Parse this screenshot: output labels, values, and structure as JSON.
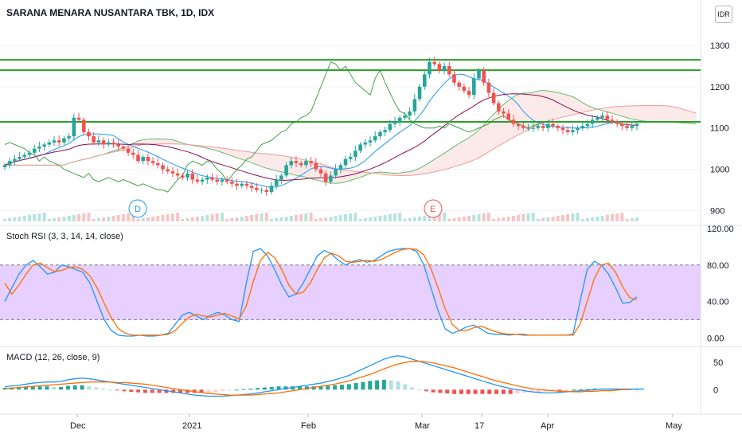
{
  "header": {
    "title": "SARANA MENARA NUSANTARA TBK, 1D, IDX",
    "currency_badge": "IDR"
  },
  "panes": {
    "stoch_label": "Stoch RSI (3, 3, 14, 14, close)",
    "macd_label": "MACD (12, 26, close, 9)"
  },
  "colors": {
    "up": "#26a69a",
    "down": "#ef5350",
    "k_line": "#2196f3",
    "d_line": "#ff6d00",
    "hline": "#2a9d2a",
    "conversion": "#2196f3",
    "base": "#880e4f",
    "lagging": "#43a047",
    "stoch_band": "#e1c4ff"
  },
  "chart_data": [
    {
      "type": "candlestick",
      "title": "SARANA MENARA NUSANTARA TBK, 1D, IDX",
      "xlabel": "",
      "ylabel": "",
      "x_ticks": [
        "Dec",
        "2021",
        "Feb",
        "Mar",
        "17",
        "Apr",
        "May"
      ],
      "y_ticks": [
        900,
        1000,
        1100,
        1200,
        1300
      ],
      "ylim": [
        870,
        1410
      ],
      "horizontal_levels": [
        1115,
        1240,
        1265
      ],
      "markers": [
        "D",
        "E"
      ],
      "close": [
        1010,
        1020,
        1025,
        1030,
        1035,
        1040,
        1050,
        1055,
        1060,
        1065,
        1070,
        1065,
        1075,
        1080,
        1125,
        1120,
        1090,
        1080,
        1065,
        1070,
        1060,
        1065,
        1060,
        1055,
        1050,
        1040,
        1035,
        1020,
        1030,
        1020,
        1015,
        1010,
        1000,
        995,
        990,
        985,
        980,
        990,
        975,
        970,
        975,
        980,
        975,
        970,
        975,
        970,
        965,
        960,
        965,
        960,
        955,
        950,
        950,
        945,
        960,
        975,
        985,
        1010,
        1020,
        1015,
        1010,
        1020,
        1015,
        1000,
        990,
        970,
        985,
        1000,
        1010,
        1025,
        1030,
        1045,
        1060,
        1065,
        1070,
        1080,
        1090,
        1095,
        1110,
        1115,
        1125,
        1130,
        1140,
        1170,
        1200,
        1230,
        1260,
        1255,
        1240,
        1250,
        1230,
        1210,
        1200,
        1190,
        1180,
        1220,
        1240,
        1210,
        1185,
        1160,
        1140,
        1135,
        1120,
        1110,
        1105,
        1100,
        1100,
        1100,
        1105,
        1100,
        1110,
        1105,
        1100,
        1095,
        1090,
        1095,
        1100,
        1105,
        1110,
        1120,
        1125,
        1130,
        1120,
        1115,
        1110,
        1105,
        1100,
        1105,
        1110
      ]
    },
    {
      "type": "line",
      "title": "Stoch RSI (3, 3, 14, 14, close)",
      "y_ticks": [
        0,
        40,
        80,
        120
      ],
      "ylim": [
        -5,
        120
      ],
      "bands": [
        20,
        80
      ],
      "series": [
        {
          "name": "",
          "values": [
            40,
            55,
            70,
            80,
            85,
            78,
            70,
            72,
            80,
            78,
            75,
            72,
            60,
            40,
            20,
            8,
            3,
            2,
            2,
            3,
            2,
            2,
            3,
            5,
            15,
            25,
            28,
            24,
            20,
            25,
            28,
            25,
            20,
            18,
            60,
            95,
            98,
            90,
            75,
            58,
            45,
            48,
            60,
            75,
            90,
            96,
            92,
            85,
            80,
            84,
            86,
            83,
            85,
            90,
            95,
            97,
            98,
            98,
            95,
            80,
            55,
            30,
            10,
            5,
            8,
            12,
            14,
            10,
            5,
            4,
            4,
            3,
            4,
            3,
            3,
            3,
            3,
            3,
            3,
            3,
            4,
            40,
            75,
            84,
            80,
            70,
            55,
            38,
            39,
            45
          ]
        },
        {
          "name": "",
          "values": [
            60,
            48,
            58,
            70,
            80,
            82,
            77,
            73,
            74,
            77,
            78,
            75,
            68,
            55,
            38,
            22,
            10,
            5,
            3,
            3,
            3,
            3,
            3,
            4,
            8,
            16,
            23,
            26,
            24,
            23,
            25,
            27,
            24,
            21,
            35,
            62,
            85,
            94,
            88,
            75,
            58,
            48,
            50,
            60,
            75,
            88,
            93,
            90,
            84,
            83,
            84,
            85,
            84,
            86,
            90,
            94,
            97,
            98,
            97,
            91,
            76,
            55,
            32,
            15,
            8,
            8,
            11,
            13,
            10,
            7,
            5,
            4,
            4,
            4,
            3,
            3,
            3,
            3,
            3,
            3,
            3,
            15,
            40,
            65,
            80,
            82,
            72,
            56,
            44,
            42
          ]
        }
      ]
    },
    {
      "type": "bar",
      "title": "MACD (12, 26, close, 9)",
      "y_ticks": [
        0,
        50
      ],
      "ylim": [
        -42,
        72
      ],
      "series": [
        {
          "name": "",
          "values": [
            5,
            7,
            8,
            10,
            12,
            13,
            14,
            14,
            15,
            18,
            20,
            21,
            20,
            18,
            16,
            14,
            12,
            10,
            8,
            6,
            4,
            2,
            0,
            -2,
            -4,
            -6,
            -8,
            -10,
            -11,
            -12,
            -12,
            -12,
            -11,
            -10,
            -9,
            -8,
            -6,
            -4,
            -2,
            0,
            2,
            4,
            6,
            8,
            10,
            12,
            15,
            18,
            22,
            26,
            32,
            38,
            44,
            50,
            56,
            60,
            62,
            60,
            56,
            52,
            48,
            44,
            40,
            36,
            32,
            28,
            24,
            20,
            16,
            12,
            8,
            5,
            2,
            0,
            -2,
            -4,
            -5,
            -6,
            -6,
            -5,
            -4,
            -3,
            -2,
            -1,
            0,
            1,
            1,
            1,
            1,
            1,
            1,
            1
          ]
        },
        {
          "name": "",
          "values": [
            2,
            3,
            4,
            5,
            6,
            7,
            8,
            9,
            10,
            11,
            12,
            13,
            14,
            14,
            14,
            14,
            13,
            13,
            12,
            11,
            10,
            8,
            6,
            4,
            2,
            0,
            -2,
            -4,
            -5,
            -7,
            -8,
            -9,
            -10,
            -10,
            -10,
            -10,
            -9,
            -8,
            -7,
            -6,
            -4,
            -2,
            0,
            2,
            4,
            6,
            8,
            10,
            13,
            16,
            20,
            24,
            28,
            33,
            38,
            43,
            47,
            50,
            52,
            52,
            51,
            49,
            46,
            43,
            40,
            36,
            32,
            28,
            24,
            20,
            16,
            13,
            10,
            7,
            4,
            2,
            0,
            -1,
            -2,
            -3,
            -3,
            -4,
            -4,
            -3,
            -3,
            -2,
            -2,
            -1,
            0,
            0
          ]
        }
      ],
      "histogram": [
        3,
        4,
        4,
        5,
        6,
        6,
        6,
        5,
        5,
        7,
        8,
        8,
        6,
        4,
        2,
        0,
        -1,
        -3,
        -4,
        -5,
        -6,
        -6,
        -6,
        -6,
        -6,
        -6,
        -6,
        -6,
        -6,
        -5,
        -4,
        -3,
        -1,
        0,
        1,
        2,
        3,
        4,
        5,
        6,
        6,
        6,
        6,
        6,
        6,
        6,
        7,
        8,
        9,
        10,
        12,
        14,
        16,
        17,
        18,
        17,
        15,
        10,
        4,
        0,
        -3,
        -5,
        -6,
        -7,
        -8,
        -8,
        -8,
        -8,
        -8,
        -8,
        -8,
        -8,
        -8,
        -7,
        -6,
        -5,
        -4,
        -3,
        -2,
        -2,
        -1,
        0,
        1,
        1,
        2,
        2,
        2,
        2,
        1,
        1,
        1
      ]
    }
  ]
}
